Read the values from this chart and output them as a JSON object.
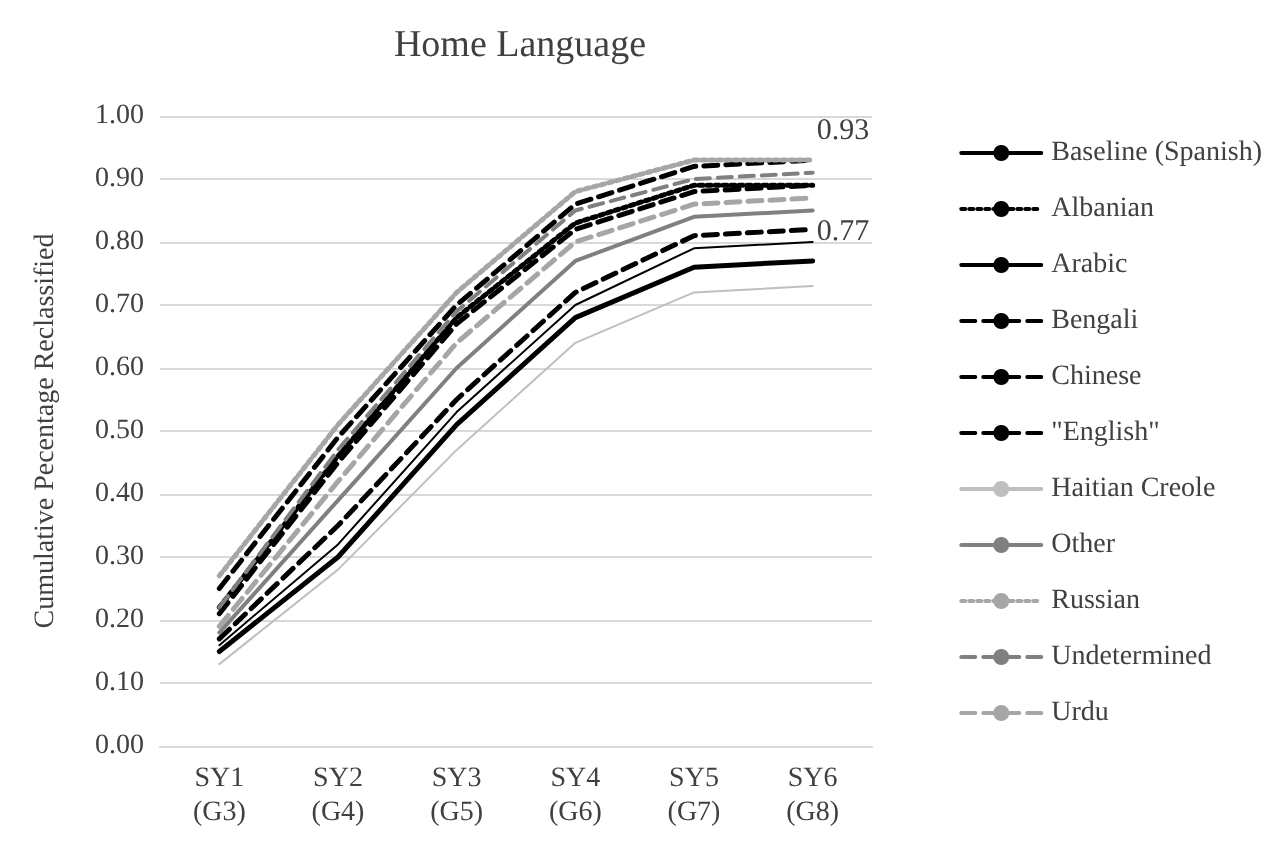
{
  "chart_data": {
    "type": "line",
    "title": "Home Language",
    "ylabel": "Cumulative Pecentage Reclassified",
    "categories": [
      "SY1\n(G3)",
      "SY2\n(G4)",
      "SY3\n(G5)",
      "SY4\n(G6)",
      "SY5\n(G7)",
      "SY6\n(G8)"
    ],
    "series": [
      {
        "name": "Baseline (Spanish)",
        "color": "#000000",
        "line_style": "solid",
        "values": [
          0.15,
          0.3,
          0.51,
          0.68,
          0.76,
          0.77
        ]
      },
      {
        "name": "Albanian",
        "color": "#000000",
        "line_style": "dotted",
        "values": [
          0.22,
          0.46,
          0.68,
          0.83,
          0.89,
          0.89
        ]
      },
      {
        "name": "Arabic",
        "color": "#000000",
        "line_style": "solid",
        "values": [
          0.16,
          0.32,
          0.53,
          0.7,
          0.79,
          0.8
        ]
      },
      {
        "name": "Bengali",
        "color": "#000000",
        "line_style": "dashed",
        "values": [
          0.25,
          0.49,
          0.7,
          0.86,
          0.92,
          0.93
        ]
      },
      {
        "name": "Chinese",
        "color": "#000000",
        "line_style": "dashed",
        "values": [
          0.21,
          0.45,
          0.67,
          0.82,
          0.88,
          0.89
        ]
      },
      {
        "name": "\"English\"",
        "color": "#000000",
        "line_style": "dashed",
        "values": [
          0.17,
          0.35,
          0.55,
          0.72,
          0.81,
          0.82
        ]
      },
      {
        "name": "Haitian Creole",
        "color": "#bfbfbf",
        "line_style": "solid",
        "values": [
          0.13,
          0.28,
          0.47,
          0.64,
          0.72,
          0.73
        ]
      },
      {
        "name": "Other",
        "color": "#808080",
        "line_style": "solid",
        "values": [
          0.18,
          0.39,
          0.6,
          0.77,
          0.84,
          0.85
        ]
      },
      {
        "name": "Russian",
        "color": "#a6a6a6",
        "line_style": "dotted",
        "values": [
          0.27,
          0.51,
          0.72,
          0.88,
          0.93,
          0.93
        ]
      },
      {
        "name": "Undetermined",
        "color": "#808080",
        "line_style": "dashed",
        "values": [
          0.22,
          0.47,
          0.69,
          0.85,
          0.9,
          0.91
        ]
      },
      {
        "name": "Urdu",
        "color": "#a6a6a6",
        "line_style": "dashed",
        "values": [
          0.19,
          0.42,
          0.64,
          0.8,
          0.86,
          0.87
        ]
      }
    ],
    "annotations": [
      {
        "text": "0.93",
        "x": "SY6\n(G8)",
        "y": 0.93
      },
      {
        "text": "0.77",
        "x": "SY6\n(G8)",
        "y": 0.77
      }
    ],
    "ylim": [
      0,
      1
    ],
    "yticks": [
      {
        "value": 0,
        "label": "0.00"
      },
      {
        "value": 0.1,
        "label": "0.10"
      },
      {
        "value": 0.2,
        "label": "0.20"
      },
      {
        "value": 0.3,
        "label": "0.30"
      },
      {
        "value": 0.4,
        "label": "0.40"
      },
      {
        "value": 0.5,
        "label": "0.50"
      },
      {
        "value": 0.6,
        "label": "0.60"
      },
      {
        "value": 0.7,
        "label": "0.70"
      },
      {
        "value": 0.8,
        "label": "0.80"
      },
      {
        "value": 0.9,
        "label": "0.90"
      },
      {
        "value": 1,
        "label": "1.00"
      }
    ],
    "grid": "y",
    "legend": "right",
    "marker": "none"
  }
}
